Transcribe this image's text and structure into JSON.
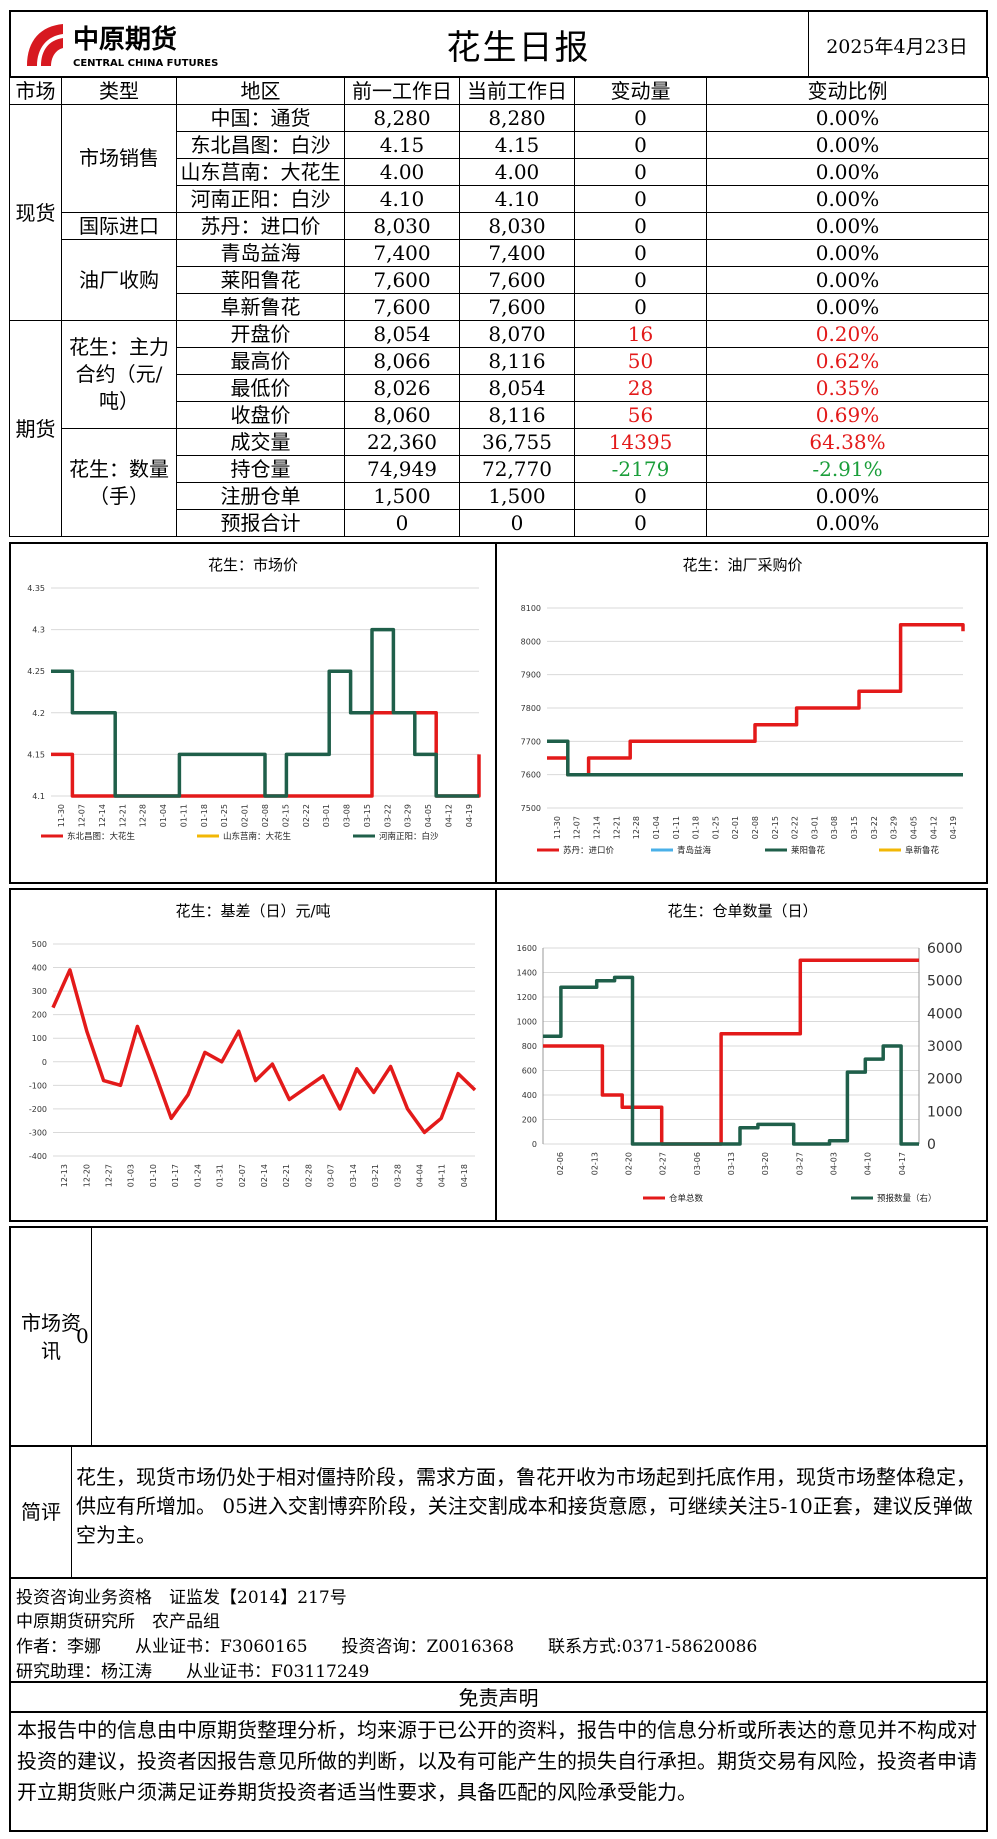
{
  "header": {
    "logo_cn": "中原期货",
    "logo_en": "CENTRAL CHINA FUTURES",
    "title": "花生日报",
    "date": "2025年4月23日"
  },
  "table": {
    "headers": [
      "市场",
      "类型",
      "地区",
      "前一工作日",
      "当前工作日",
      "变动量",
      "变动比例"
    ],
    "groups": {
      "spot": "现货",
      "futures": "期货",
      "market_sales": "市场销售",
      "intl_import": "国际进口",
      "oil_mill": "油厂收购",
      "main_contract": "花生：主力合约（元/吨）",
      "quantity": "花生：数量（手）"
    },
    "rows": [
      {
        "region": "中国：通货",
        "prev": "8,280",
        "curr": "8,280",
        "chg": "0",
        "pct": "0.00%"
      },
      {
        "region": "东北昌图：白沙",
        "prev": "4.15",
        "curr": "4.15",
        "chg": "0",
        "pct": "0.00%"
      },
      {
        "region": "山东莒南：大花生",
        "prev": "4.00",
        "curr": "4.00",
        "chg": "0",
        "pct": "0.00%"
      },
      {
        "region": "河南正阳：白沙",
        "prev": "4.10",
        "curr": "4.10",
        "chg": "0",
        "pct": "0.00%"
      },
      {
        "region": "苏丹：进口价",
        "prev": "8,030",
        "curr": "8,030",
        "chg": "0",
        "pct": "0.00%"
      },
      {
        "region": "青岛益海",
        "prev": "7,400",
        "curr": "7,400",
        "chg": "0",
        "pct": "0.00%"
      },
      {
        "region": "莱阳鲁花",
        "prev": "7,600",
        "curr": "7,600",
        "chg": "0",
        "pct": "0.00%"
      },
      {
        "region": "阜新鲁花",
        "prev": "7,600",
        "curr": "7,600",
        "chg": "0",
        "pct": "0.00%"
      },
      {
        "region": "开盘价",
        "prev": "8,054",
        "curr": "8,070",
        "chg": "16",
        "pct": "0.20%"
      },
      {
        "region": "最高价",
        "prev": "8,066",
        "curr": "8,116",
        "chg": "50",
        "pct": "0.62%"
      },
      {
        "region": "最低价",
        "prev": "8,026",
        "curr": "8,054",
        "chg": "28",
        "pct": "0.35%"
      },
      {
        "region": "收盘价",
        "prev": "8,060",
        "curr": "8,116",
        "chg": "56",
        "pct": "0.69%"
      },
      {
        "region": "成交量",
        "prev": "22,360",
        "curr": "36,755",
        "chg": "14395",
        "pct": "64.38%"
      },
      {
        "region": "持仓量",
        "prev": "74,949",
        "curr": "72,770",
        "chg": "-2179",
        "pct": "-2.91%"
      },
      {
        "region": "注册仓单",
        "prev": "1,500",
        "curr": "1,500",
        "chg": "0",
        "pct": "0.00%"
      },
      {
        "region": "预报合计",
        "prev": "0",
        "curr": "0",
        "chg": "0",
        "pct": "0.00%"
      }
    ],
    "colors": {
      "up": "#e31a1a",
      "down": "#1a9e3a"
    }
  },
  "chart_data": [
    {
      "type": "line",
      "title": "花生：市场价",
      "ylim": [
        4.1,
        4.35
      ],
      "yticks": [
        "4.35",
        "4.3",
        "4.25",
        "4.2",
        "4.15",
        "4.1"
      ],
      "x_ticks": [
        "11-30",
        "12-07",
        "12-14",
        "12-21",
        "12-28",
        "01-04",
        "01-11",
        "01-18",
        "01-25",
        "02-01",
        "02-08",
        "02-15",
        "02-22",
        "03-01",
        "03-08",
        "03-15",
        "03-22",
        "03-29",
        "04-05",
        "04-12",
        "04-19"
      ],
      "series": [
        {
          "name": "东北昌图：大花生",
          "color": "#e31a1a",
          "values": [
            4.15,
            4.1,
            4.1,
            4.1,
            4.1,
            4.1,
            4.1,
            4.1,
            4.1,
            4.1,
            4.1,
            4.1,
            4.1,
            4.1,
            4.1,
            4.2,
            4.2,
            4.2,
            4.1,
            4.1,
            4.15
          ]
        },
        {
          "name": "山东莒南：大花生",
          "color": "#f2b705",
          "values": []
        },
        {
          "name": "河南正阳：白沙",
          "color": "#1f5f4a",
          "values": [
            4.25,
            4.2,
            4.2,
            4.1,
            4.1,
            4.1,
            4.15,
            4.15,
            4.15,
            4.15,
            4.1,
            4.15,
            4.15,
            4.25,
            4.2,
            4.3,
            4.2,
            4.15,
            4.1,
            4.1,
            4.1
          ]
        }
      ]
    },
    {
      "type": "line",
      "title": "花生：油厂采购价",
      "ylim": [
        7500,
        8100
      ],
      "yticks": [
        "8100",
        "8000",
        "7900",
        "7800",
        "7700",
        "7600",
        "7500"
      ],
      "x_ticks": [
        "11-30",
        "12-07",
        "12-14",
        "12-21",
        "12-28",
        "01-04",
        "01-11",
        "01-18",
        "01-25",
        "02-01",
        "02-08",
        "02-15",
        "02-22",
        "03-01",
        "03-08",
        "03-15",
        "03-22",
        "03-29",
        "04-05",
        "04-12",
        "04-19"
      ],
      "series": [
        {
          "name": "苏丹：进口价",
          "color": "#e31a1a",
          "values": [
            7650,
            7600,
            7650,
            7650,
            7700,
            7700,
            7700,
            7700,
            7700,
            7700,
            7750,
            7750,
            7800,
            7800,
            7800,
            7850,
            7850,
            8050,
            8050,
            8050,
            8030
          ]
        },
        {
          "name": "青岛益海",
          "color": "#4ab0e8",
          "values": []
        },
        {
          "name": "莱阳鲁花",
          "color": "#1f5f4a",
          "values": [
            7700,
            7600,
            7600,
            7600,
            7600,
            7600,
            7600,
            7600,
            7600,
            7600,
            7600,
            7600,
            7600,
            7600,
            7600,
            7600,
            7600,
            7600,
            7600,
            7600,
            7600
          ]
        },
        {
          "name": "阜新鲁花",
          "color": "#f2b705",
          "values": [
            7500,
            null,
            null,
            null,
            null,
            7500,
            null,
            null,
            null,
            null,
            null,
            null,
            null,
            null,
            null,
            null,
            null,
            null,
            null,
            null,
            7600
          ]
        }
      ]
    },
    {
      "type": "line",
      "title": "花生：基差（日）元/吨",
      "ylim": [
        -400,
        500
      ],
      "yticks": [
        "500",
        "400",
        "300",
        "200",
        "100",
        "0",
        "-100",
        "-200",
        "-300",
        "-400"
      ],
      "x_ticks": [
        "12-13",
        "12-20",
        "12-27",
        "01-03",
        "01-10",
        "01-17",
        "01-24",
        "01-31",
        "02-07",
        "02-14",
        "02-21",
        "02-28",
        "03-07",
        "03-14",
        "03-21",
        "03-28",
        "04-04",
        "04-11",
        "04-18"
      ],
      "series": [
        {
          "name": "基差",
          "color": "#e31a1a",
          "values": [
            230,
            390,
            130,
            -80,
            -100,
            150,
            -40,
            -240,
            -140,
            40,
            0,
            130,
            -80,
            -10,
            -160,
            -110,
            -60,
            -200,
            -30,
            -130,
            -20,
            -200,
            -300,
            -240,
            -50,
            -120
          ]
        }
      ]
    },
    {
      "type": "line",
      "title": "花生：仓单数量（日）",
      "ylim": [
        0,
        1600
      ],
      "yticks": [
        "1600",
        "1400",
        "1200",
        "1000",
        "800",
        "600",
        "400",
        "200",
        "0"
      ],
      "y2ticks": [
        "6000",
        "5000",
        "4000",
        "3000",
        "2000",
        "1000",
        "0"
      ],
      "x_ticks": [
        "02-06",
        "02-13",
        "02-20",
        "02-27",
        "03-06",
        "03-13",
        "03-20",
        "03-27",
        "04-03",
        "04-10",
        "04-17"
      ],
      "series": [
        {
          "name": "仓单总数",
          "color": "#e31a1a",
          "values": [
            800,
            800,
            800,
            400,
            300,
            300,
            0,
            0,
            0,
            900,
            900,
            900,
            900,
            1500,
            1500,
            1500,
            1500,
            1500,
            1500,
            1500
          ]
        },
        {
          "name": "预报数量（右）",
          "color": "#1f5f4a",
          "values": [
            3300,
            4800,
            4800,
            5000,
            5100,
            0,
            0,
            0,
            0,
            0,
            0,
            500,
            600,
            600,
            0,
            0,
            100,
            2200,
            2600,
            3000,
            0,
            0
          ]
        }
      ]
    }
  ],
  "info": {
    "market_label": "市场资讯",
    "market_text": "0",
    "comment_label": "简评",
    "comment_text": "花生，现货市场仍处于相对僵持阶段，需求方面，鲁花开收为市场起到托底作用，现货市场整体稳定，供应有所增加。 05进入交割博弈阶段，关注交割成本和接货意愿，可继续关注5-10正套，建议反弹做空为主。"
  },
  "footer": {
    "line1": "投资咨询业务资格　证监发【2014】217号",
    "line2": "中原期货研究所　农产品组",
    "line3": "作者：李娜　　从业证书：F3060165　　投资咨询：Z0016368　　联系方式:0371-58620086",
    "line4": "研究助理：杨江涛　　从业证书：F03117249"
  },
  "disclaimer": {
    "title": "免责声明",
    "text": "本报告中的信息由中原期货整理分析，均来源于已公开的资料，报告中的信息分析或所表达的意见并不构成对投资的建议，投资者因报告意见所做的判断，以及有可能产生的损失自行承担。期货交易有风险，投资者申请开立期货账户须满足证券期货投资者适当性要求，具备匹配的风险承受能力。"
  }
}
